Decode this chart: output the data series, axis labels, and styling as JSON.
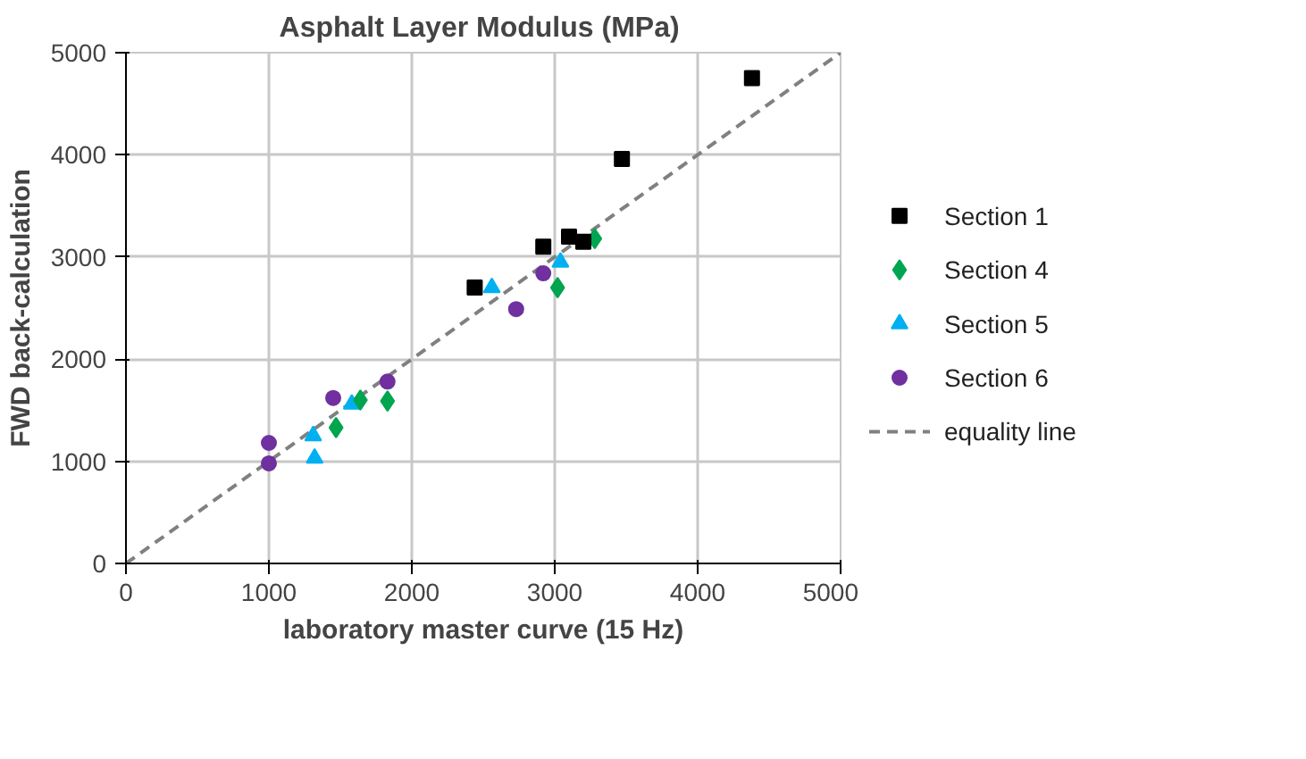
{
  "chart_data": {
    "type": "scatter",
    "title": "Asphalt Layer Modulus  (MPa)",
    "xlabel": "laboratory master curve (15 Hz)",
    "ylabel": "FWD back-calculation",
    "xlim": [
      0,
      5000
    ],
    "ylim": [
      0,
      5000
    ],
    "xticks": [
      0,
      1000,
      2000,
      3000,
      4000,
      5000
    ],
    "yticks": [
      0,
      1000,
      2000,
      3000,
      4000,
      5000
    ],
    "grid": true,
    "legend": "right",
    "series": [
      {
        "name": "Section 1",
        "color": "#000000",
        "marker": "square",
        "x": [
          2440,
          2920,
          3100,
          3200,
          3470,
          4380
        ],
        "values": [
          2700,
          3100,
          3200,
          3150,
          3960,
          4750
        ]
      },
      {
        "name": "Section 4",
        "color": "#00a550",
        "marker": "diamond",
        "x": [
          1470,
          1640,
          1830,
          3020,
          3280
        ],
        "values": [
          1330,
          1600,
          1590,
          2700,
          3180
        ]
      },
      {
        "name": "Section 5",
        "color": "#00b0f0",
        "marker": "triangle",
        "x": [
          1310,
          1320,
          1580,
          2560,
          3040
        ],
        "values": [
          1250,
          1030,
          1560,
          2700,
          2950
        ]
      },
      {
        "name": "Section 6",
        "color": "#7030a0",
        "marker": "circle",
        "x": [
          1000,
          1000,
          1450,
          1830,
          2730,
          2920
        ],
        "values": [
          980,
          1180,
          1620,
          1780,
          2490,
          2840
        ]
      },
      {
        "name": "equality line",
        "type": "line",
        "color": "#808080",
        "line_style": "dashed",
        "marker": "none",
        "x": [
          0,
          5000
        ],
        "values": [
          0,
          5000
        ]
      }
    ]
  }
}
